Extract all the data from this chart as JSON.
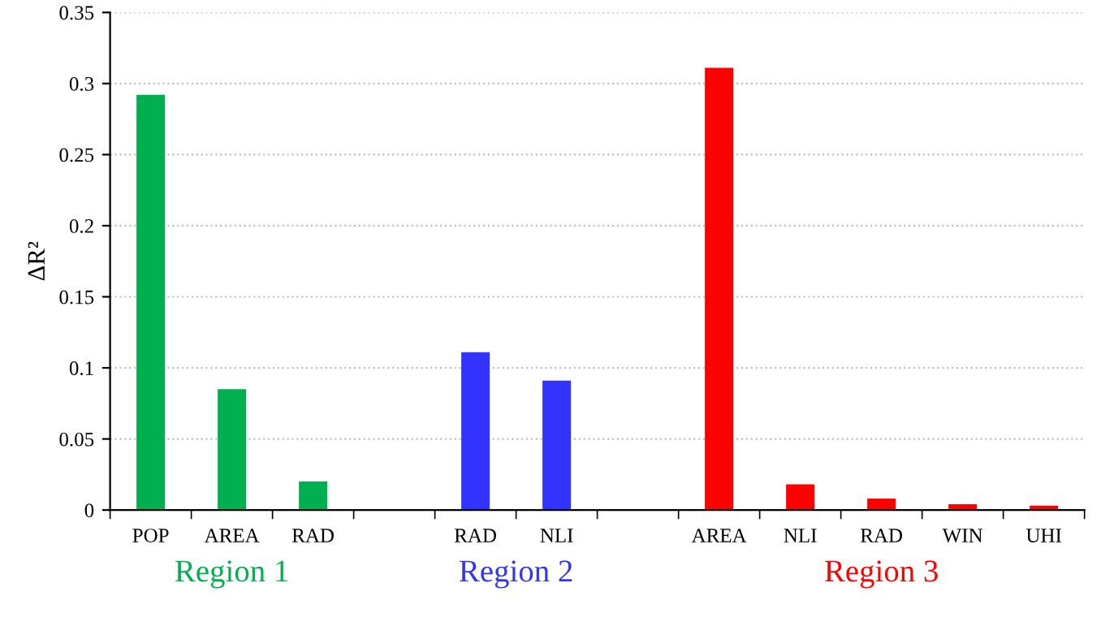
{
  "chart_data": {
    "type": "bar",
    "ylabel": "ΔR²",
    "categories": [
      "POP",
      "AREA",
      "RAD",
      null,
      "RAD",
      "NLI",
      null,
      "AREA",
      "NLI",
      "RAD",
      "WIN",
      "UHI"
    ],
    "values": [
      0.292,
      0.085,
      0.02,
      null,
      0.111,
      0.091,
      null,
      0.311,
      0.018,
      0.008,
      0.004,
      0.003
    ],
    "colors": [
      "#00b050",
      "#00b050",
      "#00b050",
      null,
      "#3333ff",
      "#3333ff",
      null,
      "#ff0000",
      "#ff0000",
      "#ff0000",
      "#ff0000",
      "#ff0000"
    ],
    "ylim": [
      0,
      0.35
    ],
    "yticks": [
      0,
      0.05,
      0.1,
      0.15,
      0.2,
      0.25,
      0.3,
      0.35
    ],
    "grid": "y",
    "annotations": [
      "Region 1",
      "Region 2",
      "Region 3"
    ]
  }
}
